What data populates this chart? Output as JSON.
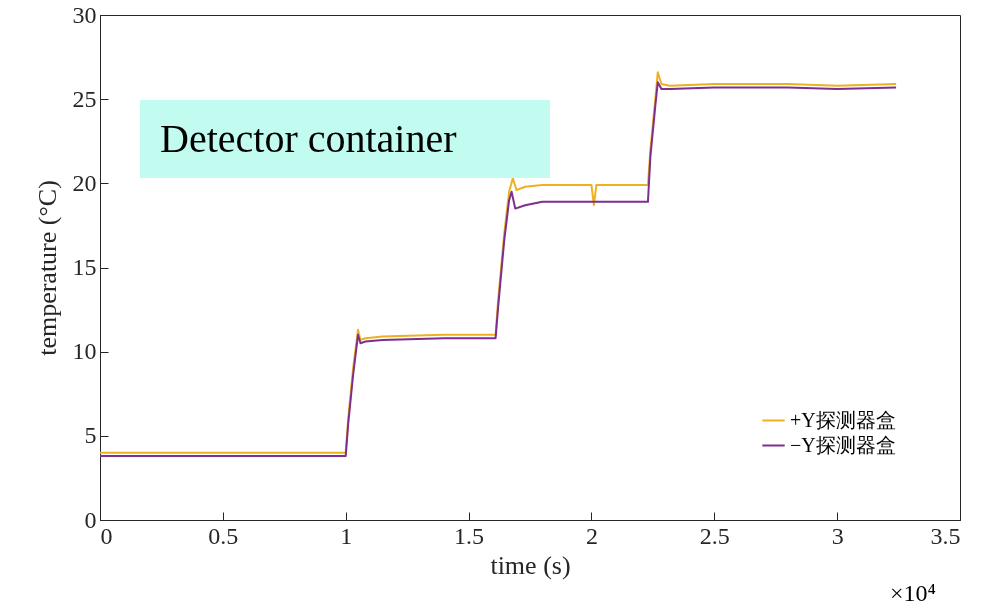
{
  "chart_data": {
    "type": "line",
    "xlabel": "time (s)",
    "ylabel": "temperature (°C)",
    "xlim": [
      0,
      3.5
    ],
    "xticks": [
      0,
      0.5,
      1,
      1.5,
      2,
      2.5,
      3,
      3.5
    ],
    "ylim": [
      0,
      30
    ],
    "yticks": [
      0,
      5,
      10,
      15,
      20,
      25,
      30
    ],
    "grid": false,
    "legend": "bottom right",
    "line_style": "solid",
    "marker": "none",
    "annotations": [
      "Detector container",
      "×10⁴"
    ],
    "series": [
      {
        "name": "+Y探测器盒",
        "color": "#edb120",
        "x": [
          0,
          0.3,
          0.6,
          0.99,
          1.0,
          1.01,
          1.03,
          1.05,
          1.06,
          1.08,
          1.15,
          1.4,
          1.61,
          1.62,
          1.645,
          1.665,
          1.68,
          1.695,
          1.73,
          1.8,
          2.0,
          2.01,
          2.02,
          2.23,
          2.24,
          2.26,
          2.27,
          2.285,
          2.32,
          2.5,
          2.8,
          3.0,
          3.24
        ],
        "values": [
          4.0,
          4.0,
          4.0,
          4.0,
          4.0,
          6.0,
          9.0,
          11.3,
          10.7,
          10.8,
          10.9,
          11.0,
          11.0,
          13.0,
          17.0,
          19.5,
          20.3,
          19.6,
          19.8,
          19.9,
          19.9,
          18.7,
          19.9,
          19.9,
          22.0,
          25.0,
          26.6,
          25.9,
          25.8,
          25.9,
          25.9,
          25.8,
          25.9
        ]
      },
      {
        "name": "−Y探测器盒",
        "color": "#7e2f8e",
        "x": [
          0,
          0.3,
          0.6,
          0.99,
          1.0,
          1.01,
          1.03,
          1.05,
          1.06,
          1.08,
          1.15,
          1.4,
          1.61,
          1.62,
          1.645,
          1.665,
          1.675,
          1.69,
          1.73,
          1.8,
          2.0,
          2.23,
          2.24,
          2.26,
          2.27,
          2.285,
          2.32,
          2.5,
          2.8,
          3.0,
          3.24
        ],
        "values": [
          3.8,
          3.8,
          3.8,
          3.8,
          3.8,
          5.7,
          8.6,
          11.0,
          10.5,
          10.6,
          10.7,
          10.8,
          10.8,
          12.6,
          16.6,
          19.0,
          19.5,
          18.5,
          18.7,
          18.9,
          18.9,
          18.9,
          21.6,
          24.6,
          26.0,
          25.6,
          25.6,
          25.7,
          25.7,
          25.6,
          25.7
        ]
      }
    ]
  }
}
